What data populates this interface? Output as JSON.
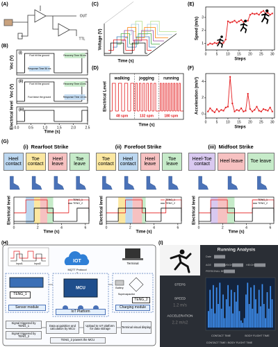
{
  "panel_labels": [
    "(A)",
    "(B)",
    "(C)",
    "(D)",
    "(E)",
    "(F)",
    "(G)",
    "(H)",
    "(I)"
  ],
  "circuit": {
    "outputs": [
      "OUT",
      "TTL"
    ]
  },
  "chart_data": [
    {
      "type": "step",
      "index": "(i)",
      "ylabel": "Voc (V)",
      "xlim": [
        0,
        2.5
      ],
      "notes": [
        {
          "text": "Foot hit the ground"
        },
        {
          "text": "Recovery Time 94 ms",
          "color": "#c6ebc9"
        },
        {
          "text": "Response Time 56 ms",
          "color": "#bcd7f0"
        }
      ],
      "series": [
        {
          "color": "#000000",
          "pulses": [
            [
              0.28,
              1.32
            ],
            [
              2.3,
              2.5
            ]
          ]
        }
      ]
    },
    {
      "type": "step",
      "index": "(ii)",
      "ylabel": "Voc (V)",
      "xlim": [
        0,
        2.5
      ],
      "notes": [
        {
          "text": "Foot hit the ground"
        },
        {
          "text": "Recovery Time 13 ms",
          "color": "#c6ebc9"
        },
        {
          "text": "Foot leave the ground"
        },
        {
          "text": "Response Time 13 ms",
          "color": "#bcd7f0"
        }
      ],
      "series": [
        {
          "color": "#000000",
          "pulses": [
            [
              0.28,
              1.32
            ],
            [
              2.3,
              2.5
            ]
          ]
        }
      ]
    },
    {
      "type": "step",
      "index": "(iii)",
      "ylabel": "Electrical level",
      "xlabel": "Time (s)",
      "xlim": [
        0,
        2.5
      ],
      "xticks": [
        {
          "value": 0,
          "label": "0.0"
        },
        0.5,
        {
          "value": 1,
          "label": "1.0"
        },
        1.5,
        {
          "value": 2,
          "label": "2.0"
        },
        2.5
      ],
      "series": [
        {
          "color": "#000000",
          "pulses": [
            [
              0.28,
              1.32
            ],
            [
              2.3,
              2.5
            ]
          ]
        }
      ]
    },
    {
      "type": "step3d",
      "ylabel": "Voltage (V)",
      "xlabel": "Time (s)",
      "xlim": [
        0,
        1
      ],
      "series": [
        {
          "color": "#000000",
          "pulses": [
            [
              0.15,
              0.45
            ],
            [
              0.65,
              0.95
            ]
          ]
        },
        {
          "color": "#e41a1c",
          "pulses": [
            [
              0.12,
              0.4
            ],
            [
              0.6,
              0.9
            ]
          ]
        },
        {
          "color": "#377eb8",
          "pulses": [
            [
              0.1,
              0.35
            ],
            [
              0.55,
              0.85
            ]
          ]
        },
        {
          "color": "#4daf4a",
          "pulses": [
            [
              0.1,
              0.3
            ],
            [
              0.5,
              0.8
            ]
          ]
        },
        {
          "color": "#984ea3",
          "pulses": [
            [
              0.08,
              0.28
            ],
            [
              0.48,
              0.75
            ]
          ]
        },
        {
          "color": "#ff7f00",
          "pulses": [
            [
              0.06,
              0.25
            ],
            [
              0.45,
              0.7
            ]
          ]
        },
        {
          "color": "#a6cee3",
          "pulses": [
            [
              0.05,
              0.22
            ],
            [
              0.42,
              0.65
            ]
          ]
        },
        {
          "color": "#b2df8a",
          "pulses": [
            [
              0.05,
              0.2
            ],
            [
              0.4,
              0.6
            ]
          ]
        }
      ]
    },
    {
      "type": "step",
      "ylabel": "Electrical Level",
      "xlabel": "Time (s)",
      "xlim": [
        0,
        30
      ],
      "sections": [
        {
          "label": "walking",
          "rate": "48 spm"
        },
        {
          "label": "jogging",
          "rate": "132 spm"
        },
        {
          "label": "running",
          "rate": "180 spm"
        }
      ],
      "dividers": [
        10,
        20
      ],
      "series": [
        {
          "color": "#e41a1c",
          "pulses": [
            [
              1,
              2.3
            ],
            [
              3.5,
              4.8
            ],
            [
              6,
              7.3
            ],
            [
              8.5,
              9.8
            ],
            [
              10.5,
              11.2
            ],
            [
              12,
              12.7
            ],
            [
              13.5,
              14.2
            ],
            [
              15,
              15.7
            ],
            [
              16.5,
              17.2
            ],
            [
              18,
              18.7
            ],
            [
              20.5,
              21
            ],
            [
              21.6,
              22.1
            ],
            [
              22.7,
              23.2
            ],
            [
              23.8,
              24.3
            ],
            [
              24.9,
              25.4
            ],
            [
              26,
              26.5
            ],
            [
              27.1,
              27.6
            ],
            [
              28.2,
              28.7
            ]
          ]
        }
      ]
    },
    {
      "type": "line",
      "ylabel": "Speed (m/s)",
      "xlabel": "Steps",
      "xlim": [
        0,
        31
      ],
      "xticks": [
        0,
        5,
        10,
        15,
        20,
        25,
        30
      ],
      "ylim": [
        0.5,
        3.8
      ],
      "yticks": [
        1,
        2,
        3
      ],
      "x": [
        1,
        2,
        3,
        4,
        5,
        6,
        7,
        8,
        9,
        10,
        11,
        12,
        13,
        14,
        15,
        16,
        17,
        18,
        19,
        20,
        21,
        22,
        23,
        24,
        25,
        26,
        27,
        28,
        29,
        30
      ],
      "series": [
        {
          "color": "#e41a1c",
          "values": [
            0.9,
            1.0,
            0.95,
            1.05,
            1.0,
            1.1,
            1.0,
            1.05,
            1.3,
            2.7,
            2.6,
            2.65,
            2.75,
            2.6,
            2.7,
            2.8,
            2.65,
            2.7,
            2.75,
            3.2,
            3.3,
            3.25,
            3.3,
            3.2,
            3.4,
            3.5,
            3.3,
            3.35,
            3.2,
            3.3
          ]
        }
      ]
    },
    {
      "type": "line",
      "ylabel": "Acceleration (m/s²)",
      "xlabel": "Steps",
      "xlim": [
        0,
        31
      ],
      "xticks": [
        0,
        5,
        10,
        15,
        20,
        25,
        30
      ],
      "ylim": [
        -0.5,
        5
      ],
      "yticks": [
        0,
        2,
        4
      ],
      "x": [
        1,
        2,
        3,
        4,
        5,
        6,
        7,
        8,
        9,
        10,
        11,
        12,
        13,
        14,
        15,
        16,
        17,
        18,
        19,
        20,
        21,
        22,
        23,
        24,
        25,
        26,
        27,
        28,
        29,
        30
      ],
      "series": [
        {
          "color": "#e41a1c",
          "values": [
            0.3,
            0.7,
            0.4,
            0.2,
            0.6,
            0.3,
            0.5,
            0.4,
            0.8,
            0.9,
            4.6,
            1.3,
            0.3,
            0.5,
            0.4,
            0.7,
            0.3,
            0.4,
            2.5,
            0.6,
            0.3,
            0.5,
            0.9,
            0.4,
            0.3,
            0.6,
            0.5,
            0.4,
            0.8,
            0.3
          ]
        }
      ]
    },
    {
      "type": "step",
      "index": "(i)",
      "title": "Rearfoot Strike",
      "ylabel": "Electrical level",
      "xlabel": "Time (s)",
      "xlim": [
        0,
        6.3
      ],
      "xticks": [
        0,
        2,
        4,
        6
      ],
      "phases": [
        {
          "label": "Heel contact",
          "color": "#bcd7f0",
          "span": [
            1.0,
            1.7
          ]
        },
        {
          "label": "Toe contact",
          "color": "#fbe7a1",
          "span": [
            1.7,
            2.2
          ]
        },
        {
          "label": "Heel leave",
          "color": "#f6c1c1",
          "span": [
            2.2,
            2.8
          ]
        },
        {
          "label": "Toe leave",
          "color": "#c6ebc9",
          "span": [
            2.8,
            3.3
          ]
        }
      ],
      "series": [
        {
          "name": "TENG_1",
          "color": "#e41a1c",
          "pulses": [
            [
              1.0,
              2.8
            ],
            [
              4.6,
              6.3
            ]
          ]
        },
        {
          "name": "TENG_2",
          "color": "#000000",
          "pulses": [
            [
              1.7,
              3.3
            ],
            [
              5.3,
              6.3
            ]
          ]
        }
      ]
    },
    {
      "type": "step",
      "index": "(ii)",
      "title": "Forefoot Strike",
      "ylabel": "Electrical level",
      "xlabel": "Time (s)",
      "xlim": [
        0,
        6.3
      ],
      "xticks": [
        0,
        2,
        4,
        6
      ],
      "phases": [
        {
          "label": "Toe contact",
          "color": "#fbe7a1",
          "span": [
            1.0,
            1.6
          ]
        },
        {
          "label": "Heel contact",
          "color": "#bcd7f0",
          "span": [
            1.6,
            2.2
          ]
        },
        {
          "label": "Heel leave",
          "color": "#f6c1c1",
          "span": [
            2.2,
            3.0
          ]
        },
        {
          "label": "Toe leave",
          "color": "#c6ebc9",
          "span": [
            3.0,
            3.3
          ]
        }
      ],
      "series": [
        {
          "name": "TENG_1",
          "color": "#e41a1c",
          "pulses": [
            [
              1.6,
              3.0
            ],
            [
              5.0,
              6.3
            ]
          ]
        },
        {
          "name": "TENG_2",
          "color": "#000000",
          "pulses": [
            [
              1.0,
              3.3
            ],
            [
              4.6,
              6.3
            ]
          ]
        }
      ]
    },
    {
      "type": "step",
      "index": "(iii)",
      "title": "Midfoot Strike",
      "ylabel": "Electrical level",
      "xlabel": "Time (s)",
      "xlim": [
        0,
        6.3
      ],
      "xticks": [
        0,
        2,
        4,
        6
      ],
      "phases": [
        {
          "label": "Heel-Toe contact",
          "color": "#d9c9f0",
          "span": [
            1.0,
            1.6
          ]
        },
        {
          "label": "Heel leave",
          "color": "#f6c1c1",
          "span": [
            1.6,
            2.4
          ]
        },
        {
          "label": "Toe leave",
          "color": "#c6ebc9",
          "span": [
            2.4,
            3.0
          ]
        }
      ],
      "series": [
        {
          "name": "TENG_1",
          "color": "#e41a1c",
          "pulses": [
            [
              1.0,
              2.4
            ],
            [
              4.5,
              6.3
            ]
          ]
        },
        {
          "name": "TENG_2",
          "color": "#000000",
          "pulses": [
            [
              1.0,
              3.0
            ],
            [
              4.5,
              6.3
            ]
          ]
        }
      ]
    }
  ],
  "iot": {
    "inputs": [
      "Input1",
      "Input2"
    ],
    "cloud": "IOT",
    "protocol": "MQTT Protocol",
    "terminal": "Terminal",
    "modules": [
      "Sensor module",
      "IoT Platform",
      "Charging module"
    ],
    "tengs": [
      "TENG_1",
      "TENG_2"
    ],
    "mcu": "MCU",
    "battery": "Battery",
    "supercap": "Supercapacitor",
    "activities": [
      "walking",
      "Running",
      "Cycling"
    ],
    "flow": [
      "Signal triggered by TENG_1",
      "Signal triggered by TENG_2",
      "Data acquisition and calculation by MCU",
      "Upload to IoT platform for data storage",
      "Terminal visual display",
      "TENG_2 powers the MCU"
    ]
  },
  "dashboard": {
    "title": "Running Analysis",
    "fields": [
      "Date",
      "AGE",
      "WEIGHT",
      "HEIGHT",
      "PERSONAL BEST"
    ],
    "metrics": [
      {
        "label": "STEPS"
      },
      {
        "label": "SPEED",
        "value": "1.2 m/s"
      },
      {
        "label": "ACCELERATION",
        "value": "2.2 m/s2"
      }
    ],
    "footer": [
      "CONTACT TIME",
      "BODY FLIGHT TIME",
      "CONTACT TIME / BODY FLIGHT TIME"
    ],
    "ylim": [
      0,
      1
    ],
    "signal": [
      0.35,
      0.8,
      0.4,
      0.9,
      0.3,
      0.85,
      0.5,
      0.95,
      0.4,
      0.7,
      0.2,
      0.6,
      0.9,
      0.45,
      0.8,
      0.3,
      0.75,
      0.55,
      0.9,
      0.35,
      0.15,
      0.1,
      0.2,
      0.7,
      0.95,
      0.5,
      0.85,
      0.4,
      0.9,
      0.6,
      0.3,
      0.8,
      0.45,
      0.92,
      0.5,
      0.2,
      0.75,
      0.4,
      0.88,
      0.6
    ]
  }
}
